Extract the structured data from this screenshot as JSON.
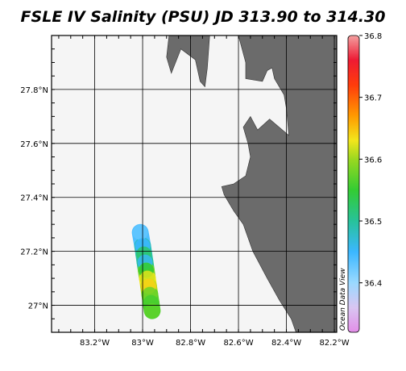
{
  "chart_data": {
    "type": "heatmap",
    "title": "FSLE IV Salinity (PSU) JD 313.90 to 314.30",
    "xlabel": "",
    "ylabel": "",
    "xlim": [
      -83.38,
      -82.19
    ],
    "ylim": [
      26.9,
      28.0
    ],
    "x_ticks": [
      {
        "value": -83.2,
        "label": "83.2°W"
      },
      {
        "value": -83.0,
        "label": "83°W"
      },
      {
        "value": -82.8,
        "label": "82.8°W"
      },
      {
        "value": -82.6,
        "label": "82.6°W"
      },
      {
        "value": -82.4,
        "label": "82.4°W"
      },
      {
        "value": -82.2,
        "label": "82.2°W"
      }
    ],
    "y_ticks": [
      {
        "value": 27.0,
        "label": "27°N"
      },
      {
        "value": 27.2,
        "label": "27.2°N"
      },
      {
        "value": 27.4,
        "label": "27.4°N"
      },
      {
        "value": 27.6,
        "label": "27.6°N"
      },
      {
        "value": 27.8,
        "label": "27.8°N"
      }
    ],
    "grid": true,
    "colorbar": {
      "placement": "right",
      "min": 36.32,
      "max": 36.8,
      "ticks": [
        {
          "value": 36.4,
          "label": "36.4"
        },
        {
          "value": 36.5,
          "label": "36.5"
        },
        {
          "value": 36.6,
          "label": "36.6"
        },
        {
          "value": 36.7,
          "label": "36.7"
        },
        {
          "value": 36.8,
          "label": "36.8"
        }
      ],
      "stops": [
        {
          "value": 36.32,
          "color": "#e38ee8"
        },
        {
          "value": 36.36,
          "color": "#d9c6f2"
        },
        {
          "value": 36.4,
          "color": "#9ad9ff"
        },
        {
          "value": 36.45,
          "color": "#3bb7ff"
        },
        {
          "value": 36.5,
          "color": "#27c29a"
        },
        {
          "value": 36.55,
          "color": "#33cc33"
        },
        {
          "value": 36.6,
          "color": "#9ad820"
        },
        {
          "value": 36.63,
          "color": "#f2e61c"
        },
        {
          "value": 36.67,
          "color": "#ff9a00"
        },
        {
          "value": 36.72,
          "color": "#ff3c0c"
        },
        {
          "value": 36.76,
          "color": "#ee1a33"
        },
        {
          "value": 36.8,
          "color": "#f4a0a0"
        }
      ]
    },
    "salinity_track": {
      "width_deg_lon": 0.07,
      "samples": [
        {
          "lat": 27.27,
          "lon": -83.01,
          "salinity": 36.43
        },
        {
          "lat": 27.22,
          "lon": -83.0,
          "salinity": 36.45
        },
        {
          "lat": 27.19,
          "lon": -82.995,
          "salinity": 36.52
        },
        {
          "lat": 27.16,
          "lon": -82.99,
          "salinity": 36.46
        },
        {
          "lat": 27.13,
          "lon": -82.985,
          "salinity": 36.55
        },
        {
          "lat": 27.1,
          "lon": -82.98,
          "salinity": 36.62
        },
        {
          "lat": 27.07,
          "lon": -82.975,
          "salinity": 36.64
        },
        {
          "lat": 27.04,
          "lon": -82.97,
          "salinity": 36.58
        },
        {
          "lat": 27.01,
          "lon": -82.965,
          "salinity": 36.56
        },
        {
          "lat": 26.98,
          "lon": -82.96,
          "salinity": 36.57
        }
      ]
    },
    "land": [
      [
        [
          -82.89,
          28.0
        ],
        [
          -82.9,
          27.92
        ],
        [
          -82.88,
          27.86
        ],
        [
          -82.84,
          27.95
        ],
        [
          -82.78,
          27.91
        ],
        [
          -82.76,
          27.83
        ],
        [
          -82.74,
          27.81
        ],
        [
          -82.73,
          27.88
        ],
        [
          -82.72,
          28.0
        ]
      ],
      [
        [
          -82.6,
          28.0
        ],
        [
          -82.57,
          27.9
        ],
        [
          -82.57,
          27.84
        ],
        [
          -82.5,
          27.83
        ],
        [
          -82.48,
          27.87
        ],
        [
          -82.46,
          27.88
        ],
        [
          -82.45,
          27.84
        ],
        [
          -82.41,
          27.78
        ],
        [
          -82.4,
          27.73
        ],
        [
          -82.39,
          27.63
        ],
        [
          -82.47,
          27.69
        ],
        [
          -82.52,
          27.65
        ],
        [
          -82.55,
          27.7
        ],
        [
          -82.58,
          27.66
        ],
        [
          -82.56,
          27.6
        ],
        [
          -82.55,
          27.55
        ],
        [
          -82.57,
          27.48
        ],
        [
          -82.62,
          27.45
        ],
        [
          -82.67,
          27.44
        ],
        [
          -82.66,
          27.41
        ],
        [
          -82.62,
          27.35
        ],
        [
          -82.58,
          27.3
        ],
        [
          -82.54,
          27.2
        ],
        [
          -82.48,
          27.1
        ],
        [
          -82.43,
          27.02
        ],
        [
          -82.38,
          26.95
        ],
        [
          -82.36,
          26.9
        ],
        [
          -82.19,
          26.9
        ],
        [
          -82.19,
          28.0
        ]
      ]
    ],
    "watermark": "Ocean Data View"
  }
}
